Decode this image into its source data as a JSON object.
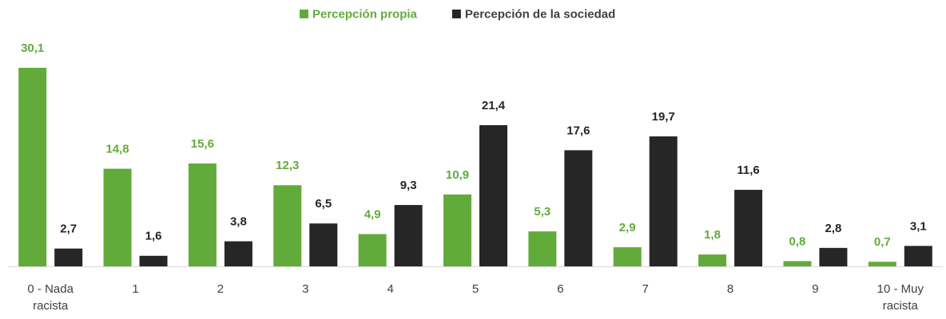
{
  "chart_data": {
    "type": "bar",
    "legend": "top",
    "categories": [
      "0 - Nada racista",
      "1",
      "2",
      "3",
      "4",
      "5",
      "6",
      "7",
      "8",
      "9",
      "10 - Muy racista"
    ],
    "series": [
      {
        "name": "Percepción propia",
        "color": "#62ab3b",
        "values": [
          30.1,
          14.8,
          15.6,
          12.3,
          4.9,
          10.9,
          5.3,
          2.9,
          1.8,
          0.8,
          0.7
        ],
        "value_labels": [
          "30,1",
          "14,8",
          "15,6",
          "12,3",
          "4,9",
          "10,9",
          "5,3",
          "2,9",
          "1,8",
          "0,8",
          "0,7"
        ]
      },
      {
        "name": "Percepción de la sociedad",
        "color": "#262626",
        "values": [
          2.7,
          1.6,
          3.8,
          6.5,
          9.3,
          21.4,
          17.6,
          19.7,
          11.6,
          2.8,
          3.1
        ],
        "value_labels": [
          "2,7",
          "1,6",
          "3,8",
          "6,5",
          "9,3",
          "21,4",
          "17,6",
          "19,7",
          "11,6",
          "2,8",
          "3,1"
        ]
      }
    ]
  }
}
